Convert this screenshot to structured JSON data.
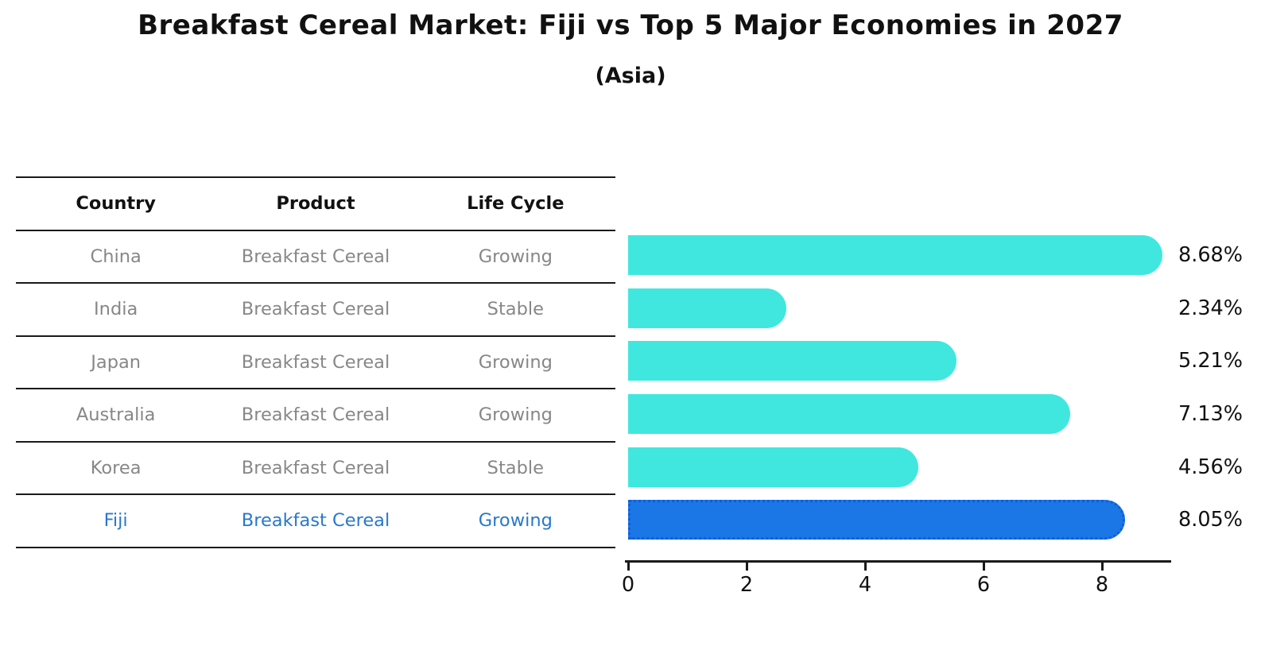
{
  "header": {
    "title": "Breakfast Cereal Market: Fiji vs Top 5 Major Economies in 2027",
    "subtitle": "(Asia)"
  },
  "table": {
    "columns": [
      "Country",
      "Product",
      "Life Cycle"
    ],
    "rows": [
      {
        "country": "China",
        "product": "Breakfast Cereal",
        "life_cycle": "Growing"
      },
      {
        "country": "India",
        "product": "Breakfast Cereal",
        "life_cycle": "Stable"
      },
      {
        "country": "Japan",
        "product": "Breakfast Cereal",
        "life_cycle": "Growing"
      },
      {
        "country": "Australia",
        "product": "Breakfast Cereal",
        "life_cycle": "Growing"
      },
      {
        "country": "Korea",
        "product": "Breakfast Cereal",
        "life_cycle": "Stable"
      },
      {
        "country": "Fiji",
        "product": "Breakfast Cereal",
        "life_cycle": "Growing"
      }
    ],
    "highlight_row": 5
  },
  "chart_data": {
    "type": "bar",
    "orientation": "horizontal",
    "title": "Breakfast Cereal Market: Fiji vs Top 5 Major Economies in 2027",
    "subtitle": "(Asia)",
    "categories": [
      "China",
      "India",
      "Japan",
      "Australia",
      "Korea",
      "Fiji"
    ],
    "values": [
      8.68,
      2.34,
      5.21,
      7.13,
      4.56,
      8.05
    ],
    "value_labels": [
      "8.68%",
      "2.34%",
      "5.21%",
      "7.13%",
      "4.56%",
      "8.05%"
    ],
    "highlight_index": 5,
    "xticks": [
      "0",
      "2",
      "4",
      "6",
      "8"
    ],
    "xtick_values": [
      0,
      2,
      4,
      6,
      8
    ],
    "xlim": [
      0,
      9.13
    ],
    "grid": false,
    "legend": "none",
    "colors": {
      "bar": "#40E7DE",
      "highlight": "#1B76E6",
      "highlight_border": "#0E5FD8",
      "highlight_text": "#2878CC",
      "text_muted": "#878787",
      "axis": "#1a1a1a"
    }
  }
}
